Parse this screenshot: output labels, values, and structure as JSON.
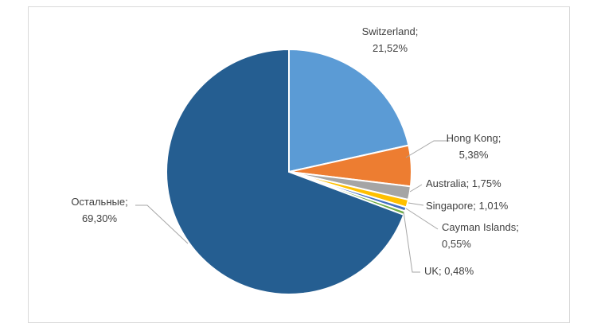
{
  "chart_data": {
    "type": "pie",
    "title": "",
    "start_angle_deg": 0,
    "direction": "clockwise",
    "legend": "none",
    "slices": [
      {
        "name": "Switzerland",
        "value": 21.52,
        "label_lines": [
          "Switzerland;",
          "21,52%"
        ],
        "color": "#5b9bd5"
      },
      {
        "name": "Hong Kong",
        "value": 5.38,
        "label_lines": [
          "Hong Kong;",
          "5,38%"
        ],
        "color": "#ed7d31"
      },
      {
        "name": "Australia",
        "value": 1.75,
        "label_lines": [
          "Australia; 1,75%"
        ],
        "color": "#a5a5a5"
      },
      {
        "name": "Singapore",
        "value": 1.01,
        "label_lines": [
          "Singapore; 1,01%"
        ],
        "color": "#ffc000"
      },
      {
        "name": "Cayman Islands",
        "value": 0.55,
        "label_lines": [
          "Cayman Islands;",
          "0,55%"
        ],
        "color": "#4472c4"
      },
      {
        "name": "UK",
        "value": 0.48,
        "label_lines": [
          "UK; 0,48%"
        ],
        "color": "#70ad47"
      },
      {
        "name": "Остальные",
        "value": 69.3,
        "label_lines": [
          "Остальные;",
          "69,30%"
        ],
        "color": "#255e91"
      }
    ]
  }
}
